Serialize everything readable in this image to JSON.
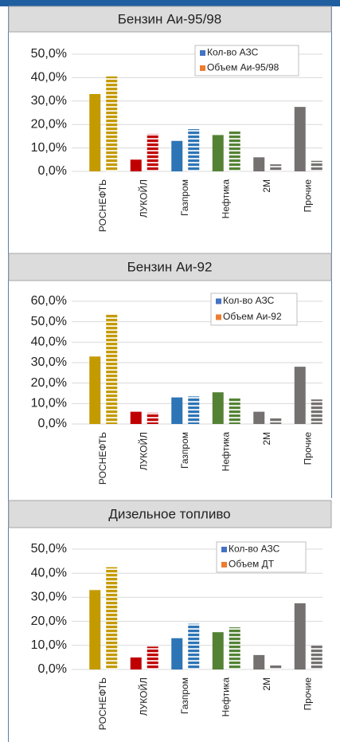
{
  "chart_data": [
    {
      "type": "bar",
      "title": "Бензин Аи-95/98",
      "categories": [
        "РОСНЕФТЬ",
        "ЛУКОЙЛ",
        "Газпром",
        "Нефтика",
        "2М",
        "Прочие"
      ],
      "category_colors": [
        "#c49a00",
        "#c00000",
        "#2e75b6",
        "#548235",
        "#767171",
        "#767171"
      ],
      "series": [
        {
          "name": "Кол-во АЗС",
          "color": "#4472c4",
          "pattern": "solid",
          "values": [
            33,
            5,
            13,
            15.5,
            6,
            27.5
          ]
        },
        {
          "name": "Объем Аи-95/98",
          "color": "#ed7d31",
          "pattern": "striped",
          "values": [
            40.5,
            16,
            18,
            17.5,
            3,
            4.5
          ]
        }
      ],
      "ylim": [
        0,
        50
      ],
      "yticks": [
        {
          "value": 0,
          "label": "0,0%"
        },
        {
          "value": 10,
          "label": "10,0%"
        },
        {
          "value": 20,
          "label": "20,0%"
        },
        {
          "value": 30,
          "label": "30,0%"
        },
        {
          "value": 40,
          "label": "40,0%"
        },
        {
          "value": 50,
          "label": "50,0%"
        }
      ],
      "grid": true
    },
    {
      "type": "bar",
      "title": "Бензин Аи-92",
      "categories": [
        "РОСНЕФТЬ",
        "ЛУКОЙЛ",
        "Газпром",
        "Нефтика",
        "2М",
        "Прочие"
      ],
      "category_colors": [
        "#c49a00",
        "#c00000",
        "#2e75b6",
        "#548235",
        "#767171",
        "#767171"
      ],
      "series": [
        {
          "name": "Кол-во АЗС",
          "color": "#4472c4",
          "pattern": "solid",
          "values": [
            33,
            6,
            13,
            15.5,
            6,
            28
          ]
        },
        {
          "name": "Объем Аи-92",
          "color": "#ed7d31",
          "pattern": "striped",
          "values": [
            54,
            5.5,
            13.5,
            13,
            3,
            12
          ]
        }
      ],
      "ylim": [
        0,
        60
      ],
      "yticks": [
        {
          "value": 0,
          "label": "0,0%"
        },
        {
          "value": 10,
          "label": "10,0%"
        },
        {
          "value": 20,
          "label": "20,0%"
        },
        {
          "value": 30,
          "label": "30,0%"
        },
        {
          "value": 40,
          "label": "40,0%"
        },
        {
          "value": 50,
          "label": "50,0%"
        },
        {
          "value": 60,
          "label": "60,0%"
        }
      ],
      "grid": true
    },
    {
      "type": "bar",
      "title": "Дизельное топливо",
      "categories": [
        "РОСНЕФТЬ",
        "ЛУКОЙЛ",
        "Газпром",
        "Нефтика",
        "2М",
        "Прочие"
      ],
      "category_colors": [
        "#c49a00",
        "#c00000",
        "#2e75b6",
        "#548235",
        "#767171",
        "#767171"
      ],
      "series": [
        {
          "name": "Кол-во АЗС",
          "color": "#4472c4",
          "pattern": "solid",
          "values": [
            33,
            5,
            13,
            15.5,
            6,
            27.5
          ]
        },
        {
          "name": "Объем ДТ",
          "color": "#ed7d31",
          "pattern": "striped",
          "values": [
            42.5,
            9.5,
            19,
            17.5,
            2,
            10.5
          ]
        }
      ],
      "ylim": [
        0,
        50
      ],
      "yticks": [
        {
          "value": 0,
          "label": "0,0%"
        },
        {
          "value": 10,
          "label": "10,0%"
        },
        {
          "value": 20,
          "label": "20,0%"
        },
        {
          "value": 30,
          "label": "30,0%"
        },
        {
          "value": 40,
          "label": "40,0%"
        },
        {
          "value": 50,
          "label": "50,0%"
        }
      ],
      "grid": true
    }
  ]
}
